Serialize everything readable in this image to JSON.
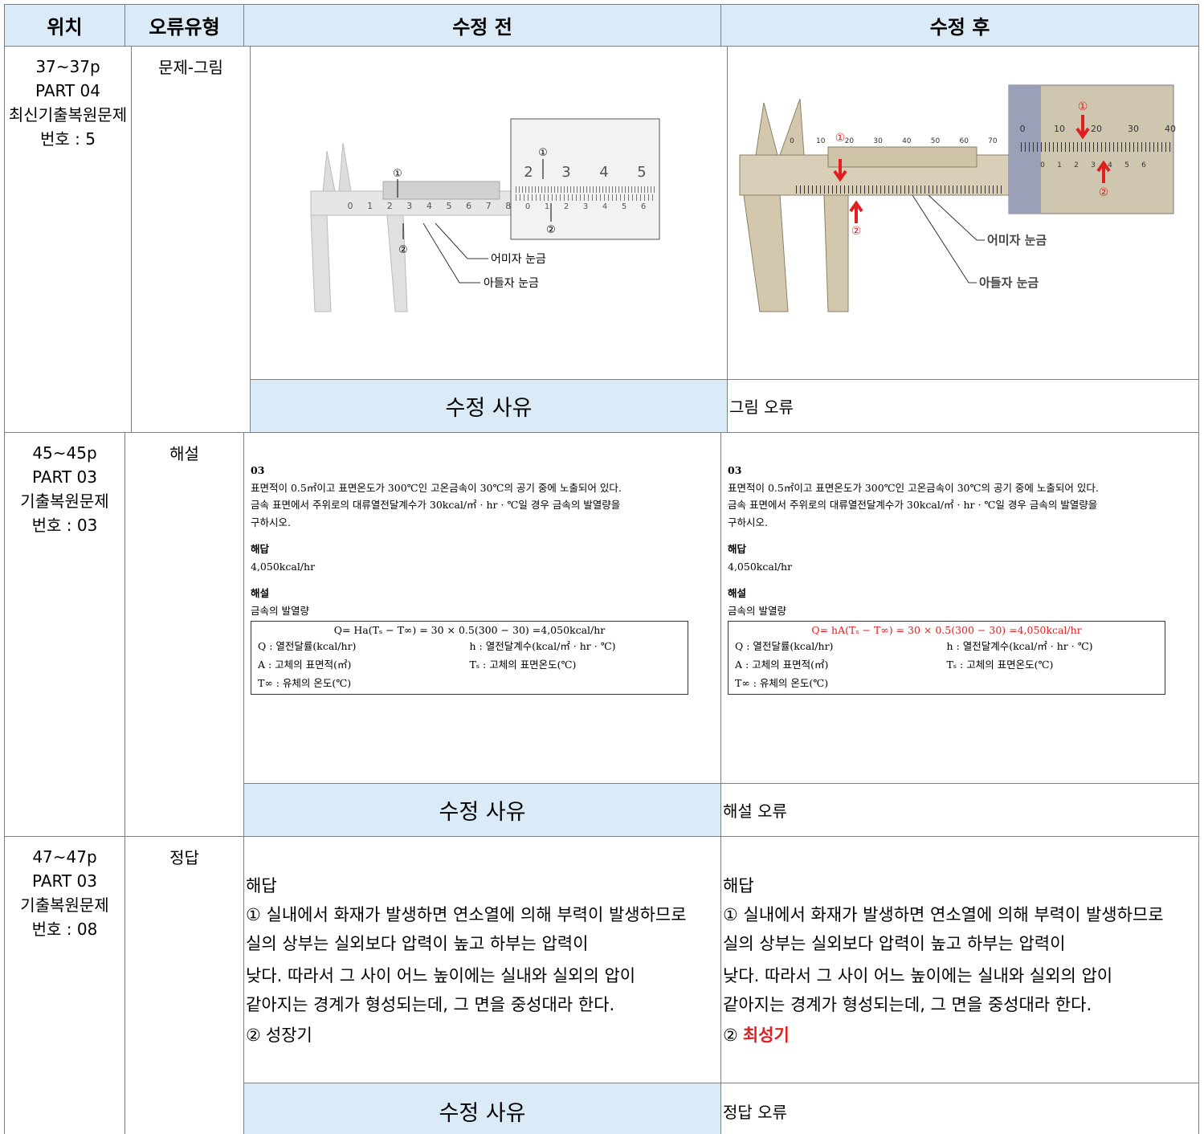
{
  "header": [
    "위치",
    "오류유형",
    "수정 전",
    "수정 후"
  ],
  "rows": [
    {
      "location": [
        "37~37p",
        "PART 04",
        "최신기출복원문제",
        "번호 : 5"
      ],
      "error_type": "문제-그림",
      "before": {
        "markers": [
          "①",
          "②"
        ],
        "main_scale": [
          "0",
          "1",
          "2",
          "3",
          "4",
          "5",
          "6",
          "7",
          "8"
        ],
        "zoom_scale": [
          "2",
          "3",
          "4",
          "5"
        ],
        "zoom_vernier": [
          "0",
          "1",
          "2",
          "3",
          "4",
          "5",
          "6"
        ],
        "labels": [
          "어미자 눈금",
          "아들자 눈금"
        ]
      },
      "after": {
        "markers": [
          "①",
          "②"
        ],
        "main_scale": [
          "0",
          "10",
          "20",
          "30",
          "40",
          "50",
          "60",
          "70"
        ],
        "zoom_scale": [
          "0",
          "10",
          "20",
          "30",
          "40"
        ],
        "zoom_vernier": [
          "0",
          "1",
          "2",
          "3",
          "4",
          "5",
          "6"
        ],
        "labels": [
          "어미자 눈금",
          "아들자 눈금"
        ]
      },
      "reason_label": "수정 사유",
      "reason": "그림 오류"
    },
    {
      "location": [
        "45~45p",
        "PART 03",
        "기출복원문제",
        "번호 : 03"
      ],
      "error_type": "해설",
      "before": {
        "number": "03",
        "question": [
          "표면적이 0.5㎡이고 표면온도가 300℃인 고온금속이 30℃의 공기 중에 노출되어 있다.",
          "금속 표면에서 주위로의 대류열전달계수가 30kcal/㎡ · hr · ℃일 경우 금속의 발열량을",
          "구하시오."
        ],
        "answer_heading": "해답",
        "answer": "4,050kcal/hr",
        "explanation_heading": "해설",
        "explanation": "금속의 발열량",
        "formula": "Q= Ha(Tₛ − T∞) = 30 × 0.5(300 − 30) =4,050kcal/hr",
        "definitions": [
          "Q : 열전달률(kcal/hr)",
          "h : 열전달계수(kcal/㎡ · hr · ℃)",
          "A : 고체의 표면적(㎡)",
          "Tₛ : 고체의 표면온도(℃)",
          "T∞ : 유체의 온도(℃)"
        ]
      },
      "after": {
        "number": "03",
        "question": [
          "표면적이 0.5㎡이고 표면온도가 300℃인 고온금속이 30℃의 공기 중에 노출되어 있다.",
          "금속 표면에서 주위로의 대류열전달계수가 30kcal/㎡ · hr · ℃일 경우 금속의 발열량을",
          "구하시오."
        ],
        "answer_heading": "해답",
        "answer": "4,050kcal/hr",
        "explanation_heading": "해설",
        "explanation": "금속의 발열량",
        "formula": "Q= hA(Tₛ − T∞) = 30 × 0.5(300 − 30) =4,050kcal/hr",
        "definitions": [
          "Q : 열전달률(kcal/hr)",
          "h : 열전달계수(kcal/㎡ · hr · ℃)",
          "A : 고체의 표면적(㎡)",
          "Tₛ : 고체의 표면온도(℃)",
          "T∞ : 유체의 온도(℃)"
        ]
      },
      "reason_label": "수정 사유",
      "reason": "해설 오류"
    },
    {
      "location": [
        "47~47p",
        "PART 03",
        "기출복원문제",
        "번호 : 08"
      ],
      "error_type": "정답",
      "before": {
        "heading": "해답",
        "lines": [
          "① 실내에서 화재가 발생하면 연소열에 의해 부력이 발생하므로",
          "실의 상부는 실외보다 압력이 높고 하부는 압력이",
          "낮다. 따라서 그 사이 어느 높이에는 실내와 실외의 압이",
          "같아지는 경계가 형성되는데, 그 면을 중성대라 한다."
        ],
        "item2_prefix": "②",
        "item2": "성장기"
      },
      "after": {
        "heading": "해답",
        "lines": [
          "① 실내에서 화재가 발생하면 연소열에 의해 부력이 발생하므로",
          "실의 상부는 실외보다 압력이 높고 하부는 압력이",
          "낮다. 따라서 그 사이 어느 높이에는 실내와 실외의 압이",
          "같아지는 경계가 형성되는데, 그 면을 중성대라 한다."
        ],
        "item2_prefix": "②",
        "item2": "최성기"
      },
      "reason_label": "수정 사유",
      "reason": "정답 오류"
    }
  ]
}
